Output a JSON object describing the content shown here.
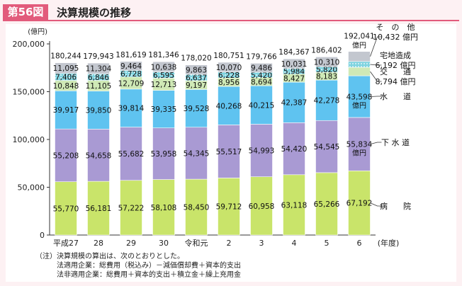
{
  "header": {
    "badge": "第56図",
    "title": "決算規模の推移"
  },
  "chart_data": {
    "type": "bar",
    "stacked": true,
    "y_unit": "(億円)",
    "x_unit": "(年度)",
    "ylim": [
      0,
      200000
    ],
    "yticks": [
      "0",
      "50,000",
      "100,000",
      "150,000",
      "200,000"
    ],
    "categories": [
      "平成27",
      "28",
      "29",
      "30",
      "令和元",
      "2",
      "3",
      "4",
      "5",
      "6"
    ],
    "series": [
      {
        "name": "病院",
        "color": "#c9e46a",
        "values": [
          55770,
          56181,
          57222,
          58108,
          58450,
          59712,
          60958,
          63118,
          65266,
          67192
        ],
        "labels": [
          "55,770",
          "56,181",
          "57,222",
          "58,108",
          "58,450",
          "59,712",
          "60,958",
          "63,118",
          "65,266",
          "67,192"
        ]
      },
      {
        "name": "下水道",
        "color": "#a99ad3",
        "values": [
          55208,
          54658,
          55682,
          53958,
          54345,
          55517,
          54993,
          54420,
          54545,
          55834
        ],
        "labels": [
          "55,208",
          "54,658",
          "55,682",
          "53,958",
          "54,345",
          "55,517",
          "54,993",
          "54,420",
          "54,545",
          "55,834"
        ]
      },
      {
        "name": "水道",
        "color": "#5fc3f0",
        "values": [
          39917,
          39850,
          39814,
          39335,
          39528,
          40268,
          40215,
          42387,
          42278,
          43598
        ],
        "labels": [
          "39,917",
          "39,850",
          "39,814",
          "39,335",
          "39,528",
          "40,268",
          "40,215",
          "42,387",
          "42,278",
          "43,598"
        ]
      },
      {
        "name": "交通",
        "color": "#cfe9b6",
        "values": [
          10848,
          11105,
          12709,
          12713,
          9197,
          8956,
          8694,
          8427,
          8183,
          8794
        ],
        "labels": [
          "10,848",
          "11,105",
          "12,709",
          "12,713",
          "9,197",
          "8,956",
          "8,694",
          "8,427",
          "8,183",
          "8,794"
        ]
      },
      {
        "name": "宅地造成",
        "color": "#7ed3df",
        "values": [
          7406,
          6846,
          6728,
          6595,
          6637,
          6228,
          5420,
          5984,
          5820,
          6192
        ],
        "labels": [
          "7,406",
          "6,846",
          "6,728",
          "6,595",
          "6,637",
          "6,228",
          "5,420",
          "5,984",
          "5,820",
          "6,192"
        ]
      },
      {
        "name": "その他",
        "color": "#c3c7cf",
        "values": [
          11095,
          11304,
          9464,
          10638,
          9863,
          10070,
          9486,
          10031,
          10310,
          10432
        ],
        "labels": [
          "11,095",
          "11,304",
          "9,464",
          "10,638",
          "9,863",
          "10,070",
          "9,486",
          "10,031",
          "10,310",
          "10,432"
        ]
      }
    ],
    "totals": [
      "180,244",
      "179,943",
      "181,619",
      "181,346",
      "178,020",
      "180,751",
      "179,766",
      "184,367",
      "186,402",
      "192,041"
    ],
    "last_bar_unit": "億円",
    "legend": [
      {
        "lines": [
          "そ　の　他",
          "10,432 億円"
        ]
      },
      {
        "lines": [
          "宅地造成",
          "6,192 億円"
        ]
      },
      {
        "lines": [
          "交　　通",
          "8,794 億円"
        ]
      },
      {
        "lines": [
          "水　　道"
        ]
      },
      {
        "lines": [
          "下 水 道"
        ]
      },
      {
        "lines": [
          "病　　院"
        ]
      }
    ]
  },
  "notes": [
    "（注）決算規模の算出は、次のとおりとした。",
    "　　　法適用企業：総費用（税込み）－減価償却費＋資本的支出",
    "　　　法非適用企業：総費用＋資本的支出＋積立金＋繰上充用金"
  ]
}
